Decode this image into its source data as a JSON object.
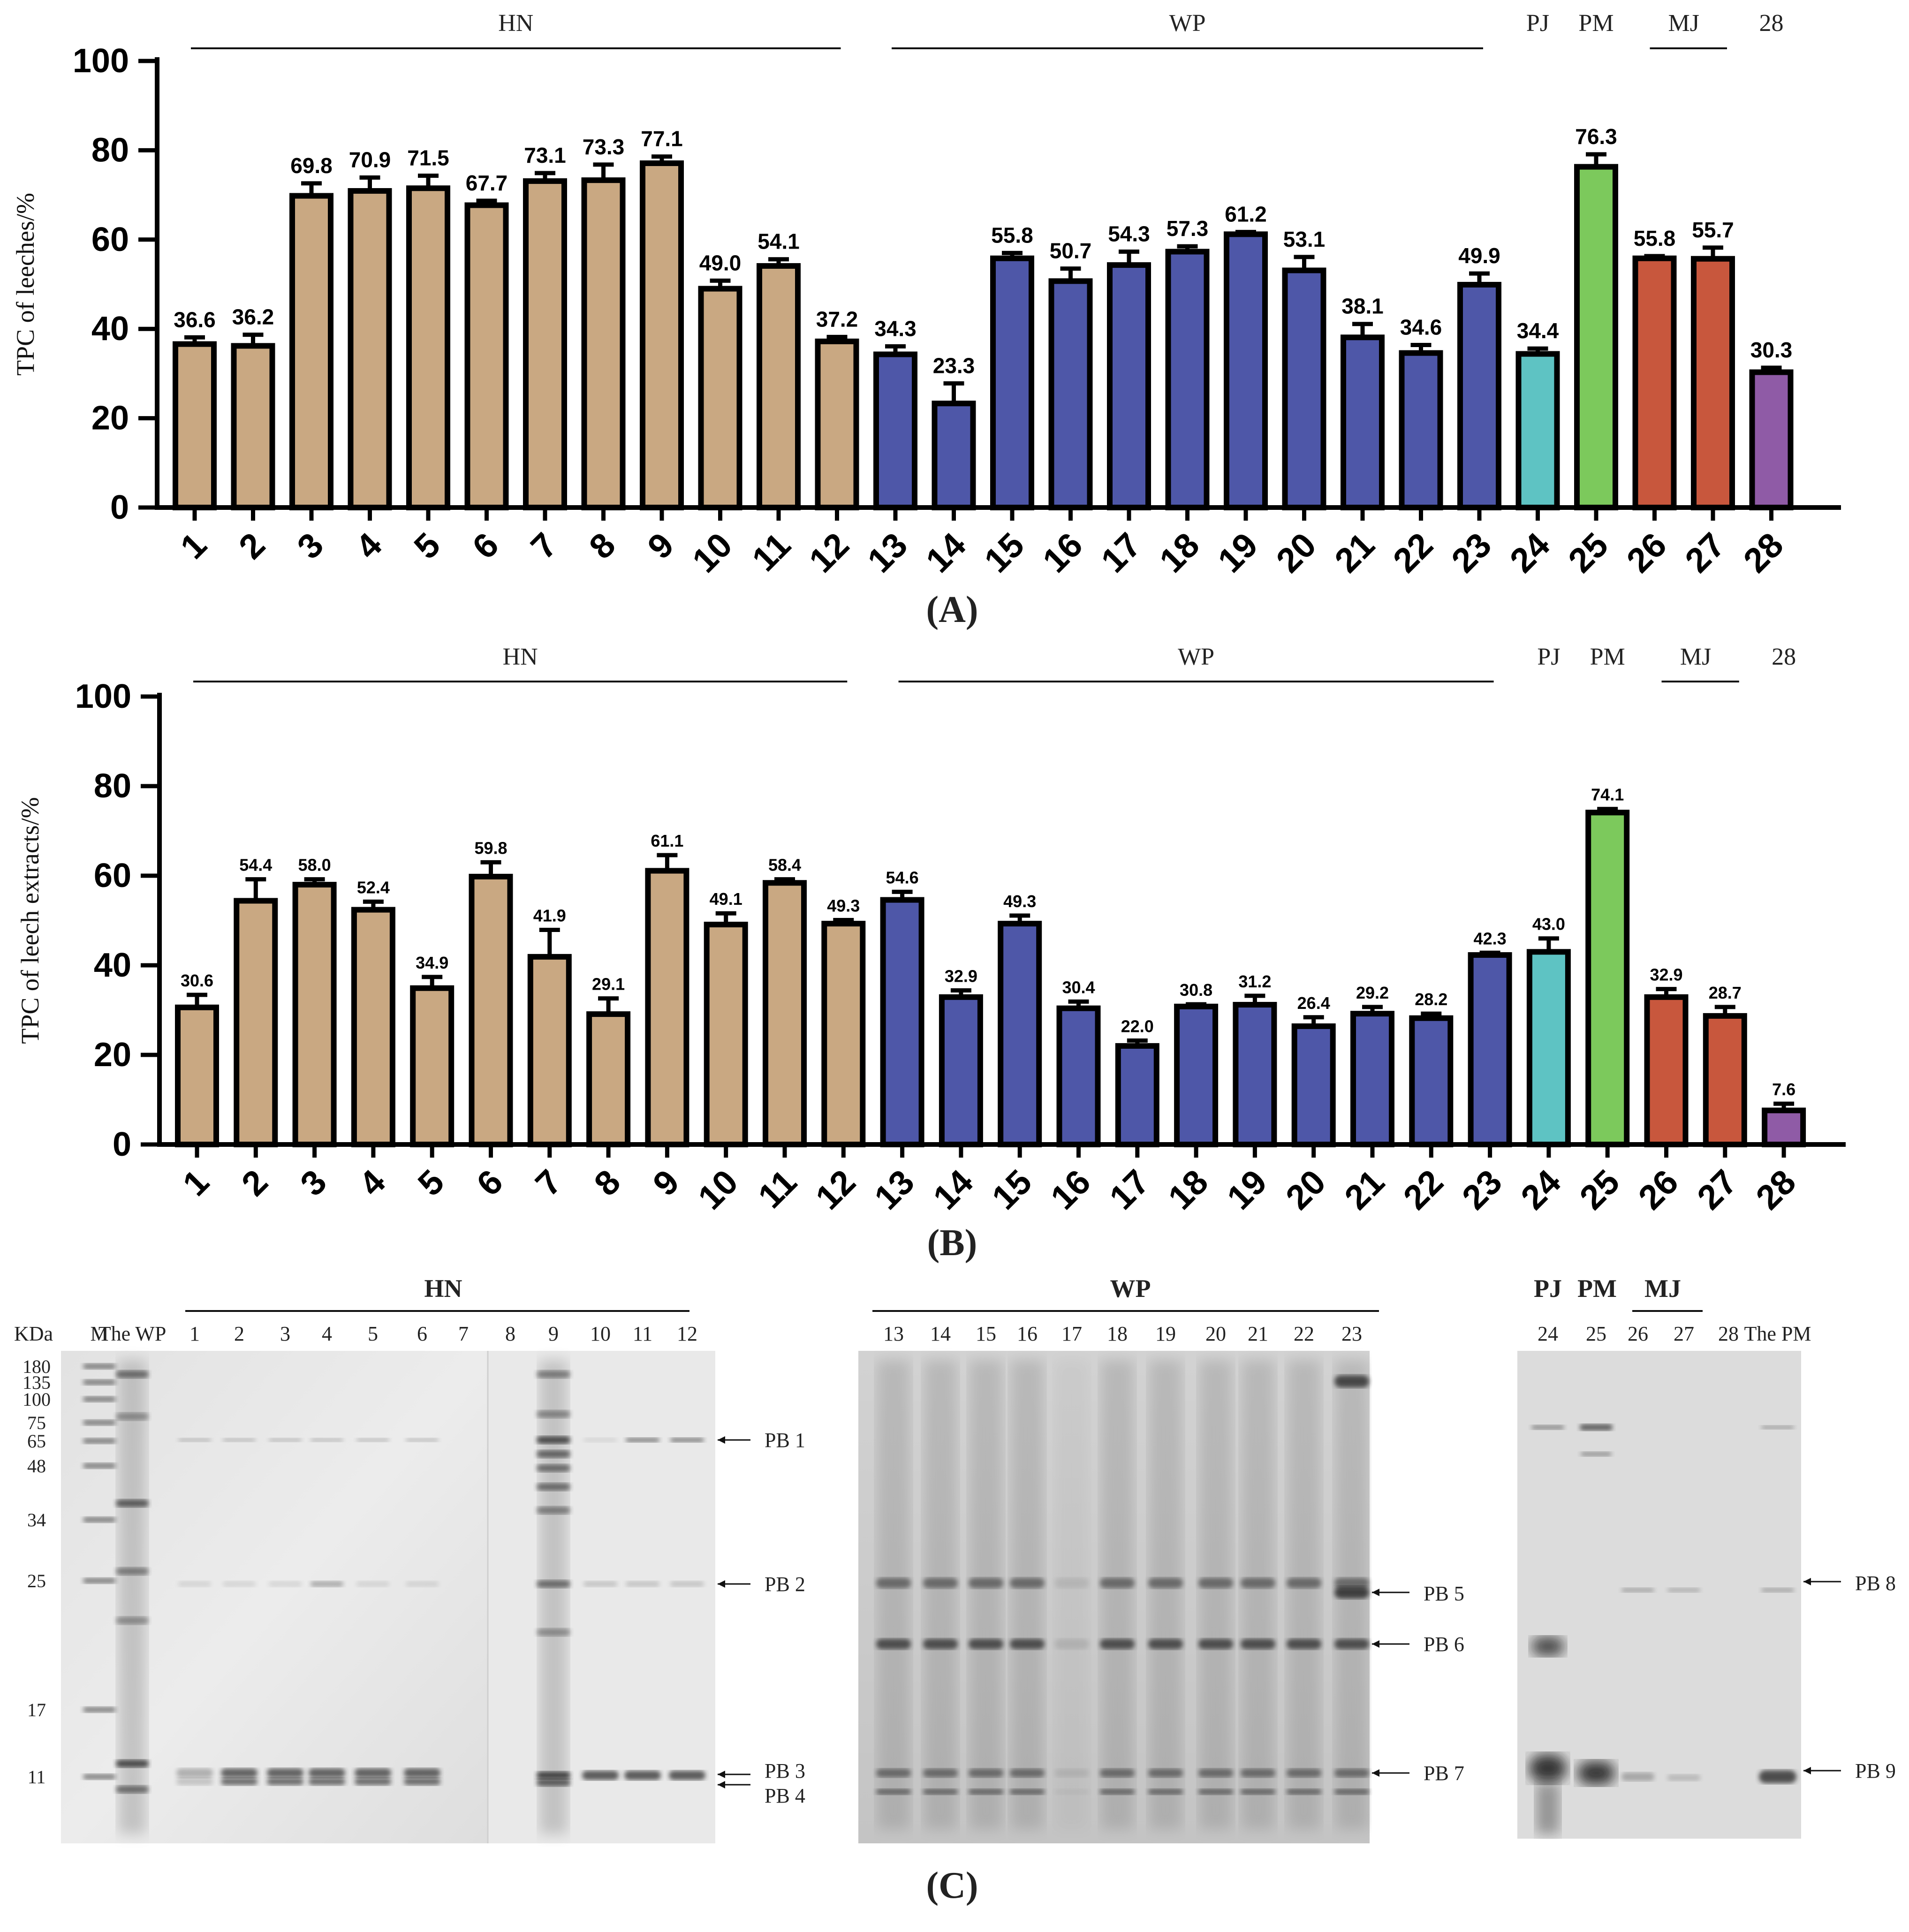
{
  "chart_data": [
    {
      "type": "bar",
      "panel": "(A)",
      "ylabel": "TPC of leeches/%",
      "xlabel": "",
      "ylim": [
        0,
        100
      ],
      "yticks": [
        0,
        20,
        40,
        60,
        80,
        100
      ],
      "categories": [
        "1",
        "2",
        "3",
        "4",
        "5",
        "6",
        "7",
        "8",
        "9",
        "10",
        "11",
        "12",
        "13",
        "14",
        "15",
        "16",
        "17",
        "18",
        "19",
        "20",
        "21",
        "22",
        "23",
        "24",
        "25",
        "26",
        "27",
        "28"
      ],
      "values": [
        36.6,
        36.2,
        69.8,
        70.9,
        71.5,
        67.7,
        73.1,
        73.3,
        77.1,
        49.0,
        54.1,
        37.2,
        34.3,
        23.3,
        55.8,
        50.7,
        54.3,
        57.3,
        61.2,
        53.1,
        38.1,
        34.6,
        49.9,
        34.4,
        76.3,
        55.8,
        55.7,
        30.3
      ],
      "value_labels": [
        "36.6",
        "36.2",
        "69.8",
        "70.9",
        "71.5",
        "67.7",
        "73.1",
        "73.3",
        "77.1",
        "49.0",
        "54.1",
        "37.2",
        "34.3",
        "23.3",
        "55.8",
        "50.7",
        "54.3",
        "57.3",
        "61.2",
        "53.1",
        "38.1",
        "34.6",
        "49.9",
        "34.4",
        "76.3",
        "55.8",
        "55.7",
        "30.3"
      ],
      "errors": [
        1.5,
        2.5,
        2.8,
        3.0,
        2.8,
        1.0,
        1.8,
        3.5,
        1.5,
        1.8,
        1.5,
        1.0,
        1.8,
        4.5,
        1.2,
        2.8,
        3.0,
        1.2,
        0.5,
        3.0,
        3.0,
        1.8,
        2.5,
        1.2,
        2.8,
        0.5,
        2.5,
        1.0
      ],
      "groups": [
        {
          "name": "HN",
          "from": 1,
          "to": 12,
          "line": true
        },
        {
          "name": "WP",
          "from": 13,
          "to": 23,
          "line": true
        },
        {
          "name": "PJ",
          "from": 24,
          "to": 24,
          "line": false
        },
        {
          "name": "PM",
          "from": 25,
          "to": 25,
          "line": false
        },
        {
          "name": "MJ",
          "from": 26,
          "to": 27,
          "line": true
        },
        {
          "name": "28",
          "from": 28,
          "to": 28,
          "line": false
        }
      ]
    },
    {
      "type": "bar",
      "panel": "(B)",
      "ylabel": "TPC of leech extracts/%",
      "xlabel": "",
      "ylim": [
        0,
        100
      ],
      "yticks": [
        0,
        20,
        40,
        60,
        80,
        100
      ],
      "categories": [
        "1",
        "2",
        "3",
        "4",
        "5",
        "6",
        "7",
        "8",
        "9",
        "10",
        "11",
        "12",
        "13",
        "14",
        "15",
        "16",
        "17",
        "18",
        "19",
        "20",
        "21",
        "22",
        "23",
        "24",
        "25",
        "26",
        "27",
        "28"
      ],
      "values": [
        30.6,
        54.4,
        58.0,
        52.4,
        34.9,
        59.8,
        41.9,
        29.1,
        61.1,
        49.1,
        58.4,
        49.3,
        54.6,
        32.9,
        49.3,
        30.4,
        22.0,
        30.8,
        31.2,
        26.4,
        29.2,
        28.2,
        42.3,
        43.0,
        74.1,
        32.9,
        28.7,
        7.6
      ],
      "value_labels": [
        "30.6",
        "54.4",
        "58.0",
        "52.4",
        "34.9",
        "59.8",
        "41.9",
        "29.1",
        "61.1",
        "49.1",
        "58.4",
        "49.3",
        "54.6",
        "32.9",
        "49.3",
        "30.4",
        "22.0",
        "30.8",
        "31.2",
        "26.4",
        "29.2",
        "28.2",
        "42.3",
        "43.0",
        "74.1",
        "32.9",
        "28.7",
        "7.6"
      ],
      "errors": [
        2.8,
        4.8,
        1.2,
        1.8,
        2.5,
        3.2,
        6.0,
        3.5,
        3.5,
        2.5,
        0.8,
        0.8,
        1.8,
        1.5,
        1.8,
        1.5,
        1.2,
        0.5,
        2.0,
        2.0,
        1.5,
        1.0,
        0.5,
        3.0,
        0.8,
        1.8,
        2.0,
        1.5
      ],
      "groups": [
        {
          "name": "HN",
          "from": 1,
          "to": 12,
          "line": true
        },
        {
          "name": "WP",
          "from": 13,
          "to": 23,
          "line": true
        },
        {
          "name": "PJ",
          "from": 24,
          "to": 24,
          "line": false
        },
        {
          "name": "PM",
          "from": 25,
          "to": 25,
          "line": false
        },
        {
          "name": "MJ",
          "from": 26,
          "to": 27,
          "line": true
        },
        {
          "name": "28",
          "from": 28,
          "to": 28,
          "line": false
        }
      ]
    }
  ],
  "bar_colors": [
    "#C9A882",
    "#C9A882",
    "#C9A882",
    "#C9A882",
    "#C9A882",
    "#C9A882",
    "#C9A882",
    "#C9A882",
    "#C9A882",
    "#C9A882",
    "#C9A882",
    "#C9A882",
    "#4E57A8",
    "#4E57A8",
    "#4E57A8",
    "#4E57A8",
    "#4E57A8",
    "#4E57A8",
    "#4E57A8",
    "#4E57A8",
    "#4E57A8",
    "#4E57A8",
    "#4E57A8",
    "#5EC3C3",
    "#7CC95C",
    "#C8573D",
    "#C8573D",
    "#8F5BA6"
  ],
  "gel": {
    "panel": "(C)",
    "kda_label": "KDa",
    "marker_label": "M",
    "marker_sizes": [
      "180",
      "135",
      "100",
      "75",
      "65",
      "48",
      "34",
      "25",
      "17",
      "11"
    ],
    "gel1": {
      "group": "HN",
      "lanes": [
        "The WP",
        "1",
        "2",
        "3",
        "4",
        "5",
        "6",
        "7",
        "8",
        "9",
        "10",
        "11",
        "12"
      ],
      "bands": [
        "PB 1",
        "PB 2",
        "PB 3",
        "PB 4"
      ]
    },
    "gel2": {
      "group": "WP",
      "lanes": [
        "13",
        "14",
        "15",
        "16",
        "17",
        "18",
        "19",
        "20",
        "21",
        "22",
        "23"
      ],
      "bands": [
        "PB 5",
        "PB 6",
        "PB 7"
      ]
    },
    "gel3": {
      "groups": [
        "PJ",
        "PM",
        "MJ"
      ],
      "lanes": [
        "24",
        "25",
        "26",
        "27",
        "28",
        "The PM"
      ],
      "bands": [
        "PB 8",
        "PB 9"
      ]
    }
  }
}
